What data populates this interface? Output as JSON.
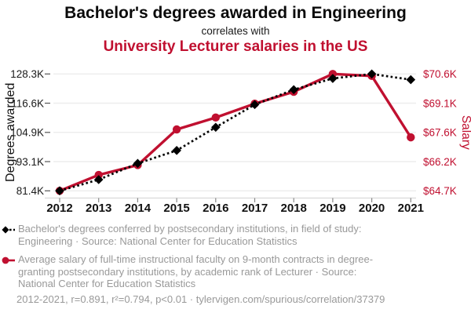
{
  "header": {
    "title": "Bachelor's degrees awarded in Engineering",
    "connector": "correlates with",
    "subtitle": "University Lecturer salaries in the US"
  },
  "chart_data": {
    "type": "line",
    "x_labels": [
      "2012",
      "2013",
      "2014",
      "2015",
      "2016",
      "2017",
      "2018",
      "2019",
      "2020",
      "2021"
    ],
    "left_axis": {
      "label": "Degrees awarded",
      "range": [
        81.4,
        128.3
      ],
      "tick_labels": [
        "128.3K",
        "116.6K",
        "104.9K",
        "93.1K",
        "81.4K"
      ],
      "tick_values": [
        128.3,
        116.6,
        104.9,
        93.1,
        81.4
      ]
    },
    "right_axis": {
      "label": "Salary",
      "range": [
        64.7,
        70.6
      ],
      "tick_labels": [
        "$70.6K",
        "$69.1K",
        "$67.6K",
        "$66.2K",
        "$64.7K"
      ],
      "tick_values": [
        70.6,
        69.1,
        67.6,
        66.2,
        64.7
      ]
    },
    "series": [
      {
        "name": "Lecturer average salary ($K)",
        "axis": "right",
        "color": "#c01030",
        "line_style": "solid",
        "marker": "circle",
        "values": [
          64.7,
          65.5,
          66.0,
          67.8,
          68.4,
          69.1,
          69.7,
          70.6,
          70.5,
          67.4
        ]
      },
      {
        "name": "Engineering bachelor's degrees (thousands)",
        "axis": "left",
        "color": "#000000",
        "line_style": "dotted",
        "marker": "diamond",
        "values": [
          81.4,
          85.9,
          92.4,
          97.6,
          106.9,
          116.0,
          122.0,
          126.5,
          128.3,
          126.0
        ]
      }
    ],
    "grid": true,
    "legend_position": "bottom"
  },
  "legend": {
    "items": [
      {
        "marker": "black-diamond-dotted",
        "label": "Bachelor's degrees conferred by postsecondary institutions, in field of study: Engineering · Source: National Center for Education Statistics"
      },
      {
        "marker": "red-circle-solid",
        "label": "Average salary of full-time instructional faculty on 9-month contracts in degree-granting postsecondary institutions, by academic rank of Lecturer · Source: National Center for Education Statistics"
      }
    ]
  },
  "footer": {
    "text": "2012-2021, r=0.891, r²=0.794, p<0.01 · tylervigen.com/spurious/correlation/37379"
  },
  "colors": {
    "accent_red": "#c01030",
    "series_black": "#000000",
    "grid_line": "#ececec",
    "axis_line": "#d9d9d9",
    "tick_mark": "#555555",
    "muted_text": "#999999",
    "tick_text": "#1a1a1a"
  }
}
